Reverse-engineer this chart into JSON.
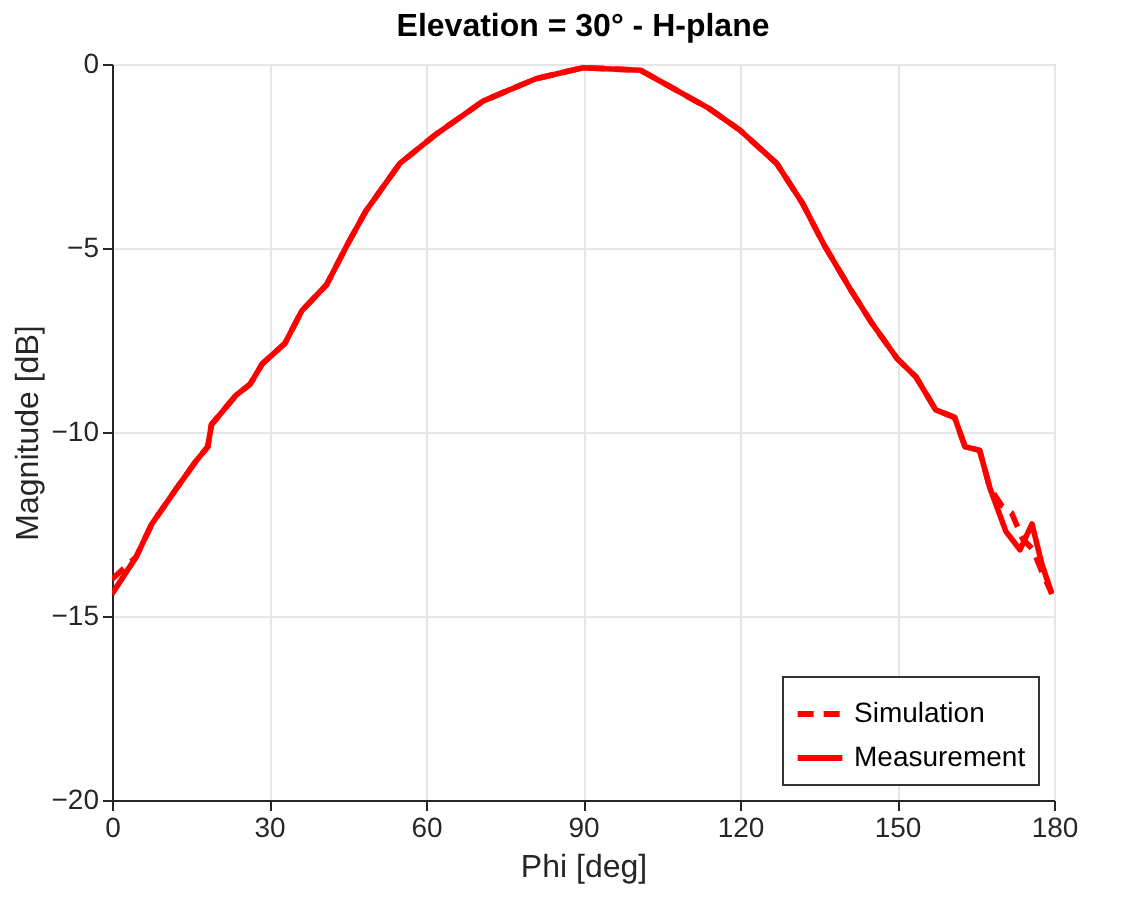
{
  "chart_data": {
    "type": "line",
    "title": "Elevation = 30° - H-plane",
    "xlabel": "Phi [deg]",
    "ylabel": "Magnitude [dB]",
    "xlim": [
      0,
      180
    ],
    "xticks": [
      0,
      30,
      60,
      90,
      120,
      150,
      180
    ],
    "ylim": [
      -20,
      0
    ],
    "yticks": [
      -20,
      -15,
      -10,
      -5,
      0
    ],
    "grid": true,
    "legend": "bottom right",
    "series": [
      {
        "name": "Simulation",
        "color": "#ff0000",
        "line_style": "dashed",
        "x": [
          0,
          4.6,
          7.6,
          12,
          16,
          18.3,
          19,
          23.7,
          26.4,
          28.7,
          33,
          36.3,
          41,
          45,
          48.5,
          55,
          62,
          71,
          81,
          90,
          101,
          114,
          120,
          127,
          132,
          136,
          141,
          145,
          150,
          153.6,
          157.4,
          161,
          163,
          165.8,
          167.7,
          170,
          171.9,
          174,
          176,
          177.7,
          179.6
        ],
        "values": [
          -14.0,
          -13.4,
          -12.5,
          -11.6,
          -10.8,
          -10.4,
          -9.8,
          -9.0,
          -8.7,
          -8.15,
          -7.6,
          -6.7,
          -6.0,
          -4.9,
          -4.0,
          -2.7,
          -1.9,
          -1.0,
          -0.4,
          -0.1,
          -0.17,
          -1.2,
          -1.8,
          -2.7,
          -3.8,
          -4.9,
          -6.1,
          -7.0,
          -8.0,
          -8.5,
          -9.4,
          -9.6,
          -10.4,
          -10.5,
          -11.5,
          -12.0,
          -12.2,
          -12.9,
          -13.2,
          -13.8,
          -14.4
        ]
      },
      {
        "name": "Measurement",
        "color": "#ff0000",
        "line_style": "solid",
        "x": [
          0,
          4.6,
          7.6,
          12,
          16,
          18.3,
          19,
          23.7,
          26.4,
          28.7,
          33,
          36.3,
          41,
          45,
          48.5,
          55,
          62,
          71,
          81,
          90,
          101,
          114,
          120,
          127,
          132,
          136,
          141,
          145,
          150,
          153.6,
          157.4,
          161,
          163,
          165.8,
          167.7,
          170.8,
          173.5,
          175.8,
          177.7,
          179.6
        ],
        "values": [
          -14.4,
          -13.4,
          -12.5,
          -11.6,
          -10.8,
          -10.4,
          -9.8,
          -9.0,
          -8.7,
          -8.15,
          -7.6,
          -6.7,
          -6.0,
          -4.9,
          -4.0,
          -2.7,
          -1.9,
          -1.0,
          -0.4,
          -0.1,
          -0.17,
          -1.2,
          -1.8,
          -2.7,
          -3.8,
          -4.9,
          -6.1,
          -7.0,
          -8.0,
          -8.5,
          -9.4,
          -9.6,
          -10.4,
          -10.5,
          -11.5,
          -12.7,
          -13.2,
          -12.5,
          -13.6,
          -14.4
        ]
      }
    ]
  }
}
